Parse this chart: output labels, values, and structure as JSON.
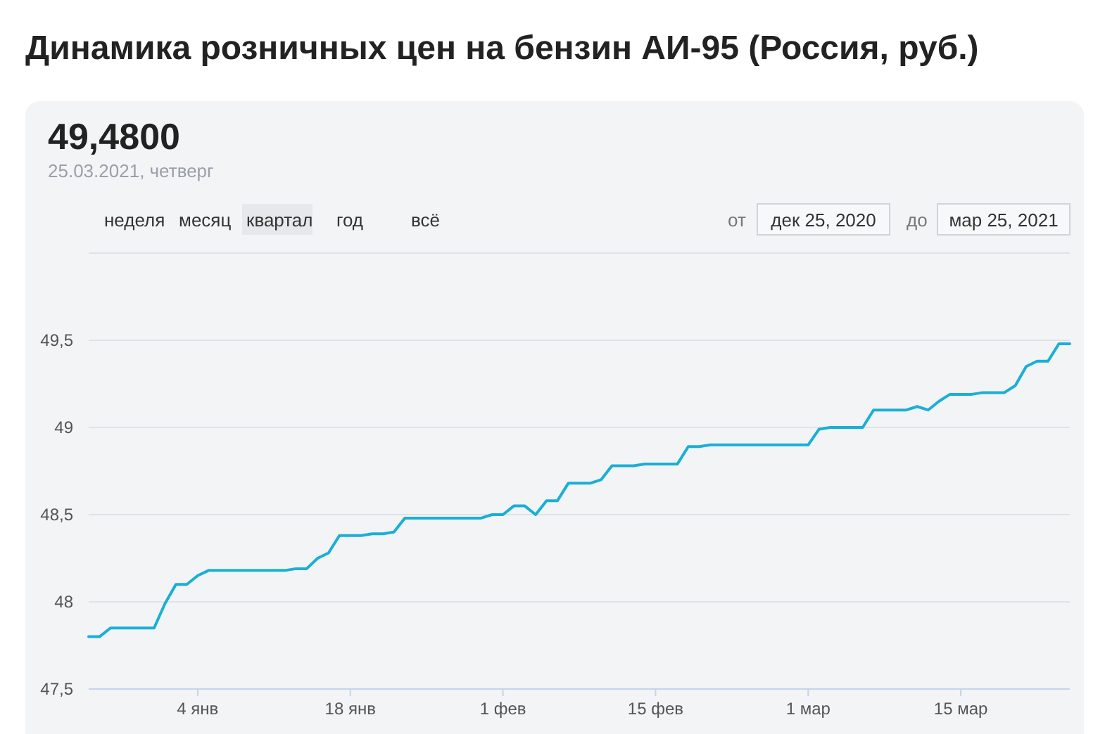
{
  "chart_data": {
    "type": "line",
    "title": "Динамика розничных цен на бензин АИ-95 (Россия, руб.)",
    "annotations": [
      "49,4800",
      "25.03.2021, четверг",
      "неделя",
      "месяц",
      "квартал",
      "год",
      "всё",
      "от",
      "дек 25, 2020",
      "до",
      "мар 25, 2021"
    ],
    "x": [
      "2020-12-25",
      "2020-12-26",
      "2020-12-27",
      "2020-12-31",
      "2021-01-01",
      "2021-01-02",
      "2021-01-03",
      "2021-01-04",
      "2021-01-05",
      "2021-01-12",
      "2021-01-13",
      "2021-01-14",
      "2021-01-15",
      "2021-01-16",
      "2021-01-17",
      "2021-01-19",
      "2021-01-20",
      "2021-01-21",
      "2021-01-22",
      "2021-01-23",
      "2021-01-30",
      "2021-01-31",
      "2021-02-01",
      "2021-02-02",
      "2021-02-03",
      "2021-02-04",
      "2021-02-05",
      "2021-02-06",
      "2021-02-07",
      "2021-02-09",
      "2021-02-10",
      "2021-02-11",
      "2021-02-13",
      "2021-02-14",
      "2021-02-17",
      "2021-02-18",
      "2021-02-19",
      "2021-02-20",
      "2021-03-01",
      "2021-03-02",
      "2021-03-03",
      "2021-03-06",
      "2021-03-07",
      "2021-03-10",
      "2021-03-11",
      "2021-03-12",
      "2021-03-13",
      "2021-03-14",
      "2021-03-16",
      "2021-03-17",
      "2021-03-19",
      "2021-03-20",
      "2021-03-21",
      "2021-03-22",
      "2021-03-23",
      "2021-03-24",
      "2021-03-25"
    ],
    "series": [
      {
        "color": "#1aafd6",
        "values": [
          47.8,
          47.8,
          47.85,
          47.85,
          47.99,
          48.1,
          48.1,
          48.15,
          48.18,
          48.18,
          48.19,
          48.19,
          48.25,
          48.28,
          48.38,
          48.38,
          48.39,
          48.39,
          48.4,
          48.48,
          48.48,
          48.5,
          48.5,
          48.55,
          48.55,
          48.5,
          48.58,
          48.58,
          48.68,
          48.68,
          48.7,
          48.78,
          48.78,
          48.79,
          48.79,
          48.89,
          48.89,
          48.9,
          48.9,
          48.99,
          49.0,
          49.0,
          49.1,
          49.1,
          49.12,
          49.1,
          49.15,
          49.19,
          49.19,
          49.2,
          49.2,
          49.24,
          49.35,
          49.38,
          49.38,
          49.48,
          49.48
        ]
      }
    ],
    "xlim": [
      "2020-12-25",
      "2021-03-25"
    ],
    "xticks": [
      {
        "value": "2021-01-04",
        "label": "4 янв"
      },
      {
        "value": "2021-01-18",
        "label": "18 янв"
      },
      {
        "value": "2021-02-01",
        "label": "1 фев"
      },
      {
        "value": "2021-02-15",
        "label": "15 фев"
      },
      {
        "value": "2021-03-01",
        "label": "1 мар"
      },
      {
        "value": "2021-03-15",
        "label": "15 мар"
      }
    ],
    "ylim": [
      47.5,
      50
    ],
    "yticks": [
      {
        "value": 47.5,
        "label": "47,5"
      },
      {
        "value": 48,
        "label": "48"
      },
      {
        "value": 48.5,
        "label": "48,5"
      },
      {
        "value": 49,
        "label": "49"
      },
      {
        "value": 49.5,
        "label": "49,5"
      },
      {
        "value": 50,
        "label": null
      }
    ],
    "grid": "y",
    "marker": "none",
    "line_style": "solid"
  }
}
